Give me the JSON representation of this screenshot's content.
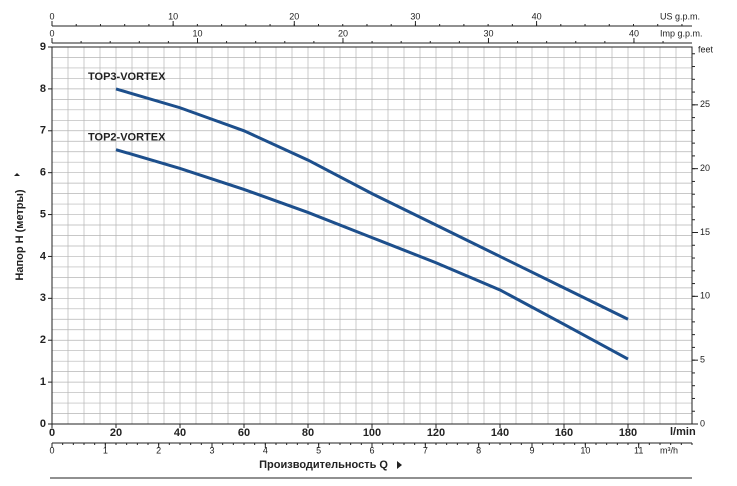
{
  "chart_data": {
    "type": "line",
    "x_label": "Производительность Q",
    "y_label": "Напор H (метры)",
    "x_unit": "l/min",
    "xlim": [
      0,
      200
    ],
    "xticks": [
      0,
      20,
      40,
      60,
      80,
      100,
      120,
      140,
      160,
      180
    ],
    "ylim": [
      0,
      9
    ],
    "yticks": [
      0,
      1,
      2,
      3,
      4,
      5,
      6,
      7,
      8,
      9
    ],
    "grid": true,
    "x": [
      20,
      40,
      60,
      80,
      100,
      120,
      140,
      160,
      180
    ],
    "series": [
      {
        "name": "TOP3-VORTEX",
        "color": "#1d4f8c",
        "values": [
          8.0,
          7.55,
          7.0,
          6.3,
          5.5,
          4.75,
          4.0,
          3.25,
          2.5
        ]
      },
      {
        "name": "TOP2-VORTEX",
        "color": "#1d4f8c",
        "values": [
          6.55,
          6.1,
          5.6,
          5.05,
          4.45,
          3.85,
          3.2,
          2.38,
          1.55
        ]
      }
    ],
    "us_gpm_axis": {
      "label": "US g.p.m.",
      "lim": [
        0,
        52.83
      ],
      "ticks": [
        0,
        10,
        20,
        30,
        40
      ]
    },
    "imp_gpm_axis": {
      "label": "Imp g.p.m.",
      "lim": [
        0,
        43.99
      ],
      "ticks": [
        0,
        10,
        20,
        30,
        40
      ]
    },
    "m3h_axis": {
      "label": "m³/h",
      "lim": [
        0,
        12
      ],
      "ticks": [
        0,
        1,
        2,
        3,
        4,
        5,
        6,
        7,
        8,
        9,
        10,
        11
      ]
    },
    "feet_axis": {
      "label": "feet",
      "lim": [
        0,
        29.53
      ],
      "ticks": [
        0,
        5,
        10,
        15,
        20,
        25
      ]
    }
  }
}
